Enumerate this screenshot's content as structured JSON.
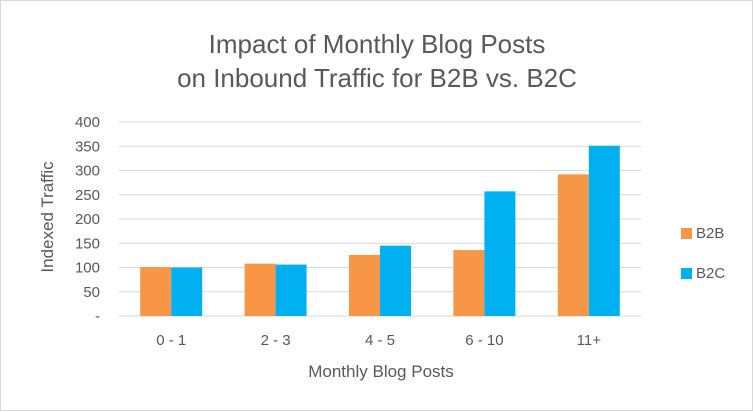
{
  "chart_data": {
    "type": "bar",
    "title_lines": [
      "Impact of Monthly Blog Posts",
      "on Inbound Traffic for B2B vs. B2C"
    ],
    "xlabel": "Monthly Blog Posts",
    "ylabel": "Indexed Traffic",
    "categories": [
      "0 - 1",
      "2 - 3",
      "4 - 5",
      "6 - 10",
      "11+"
    ],
    "series": [
      {
        "name": "B2B",
        "color": "#F79646",
        "values": [
          101,
          108,
          126,
          136,
          292
        ]
      },
      {
        "name": "B2C",
        "color": "#00B0F0",
        "values": [
          100,
          106,
          145,
          257,
          351
        ]
      }
    ],
    "ylim": [
      0,
      400
    ],
    "yticks": [
      "-",
      "50",
      "100",
      "150",
      "200",
      "250",
      "300",
      "350",
      "400"
    ],
    "grid": true,
    "legend_position": "right"
  }
}
